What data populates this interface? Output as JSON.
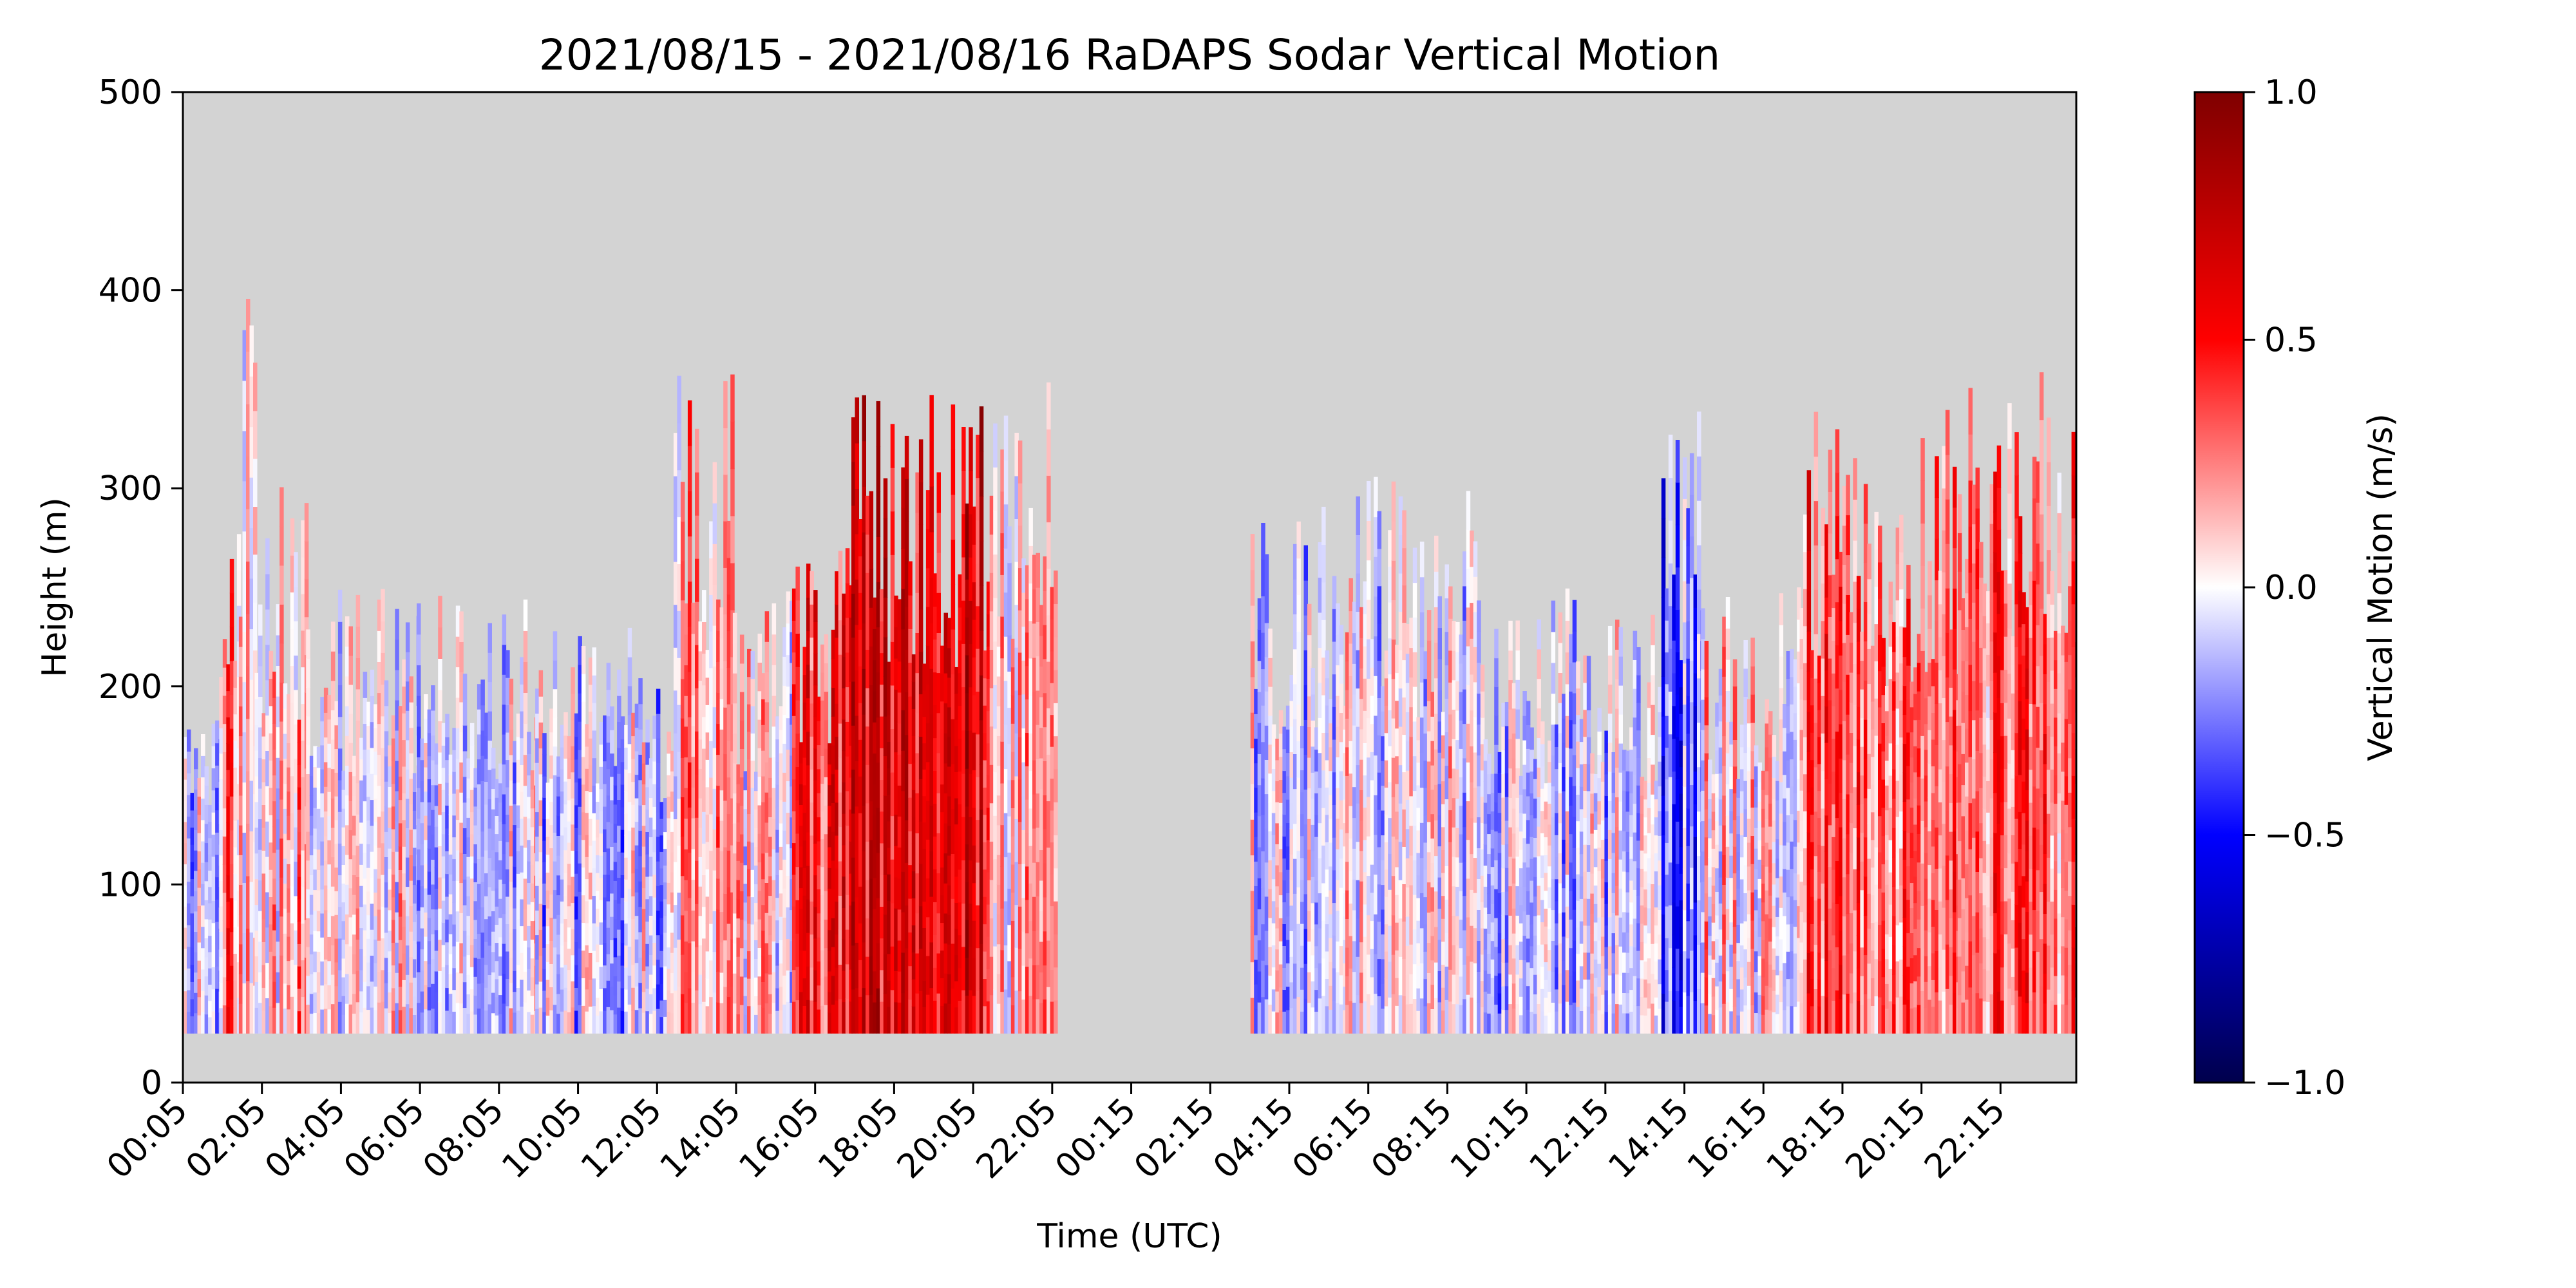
{
  "chart_data": {
    "type": "heatmap",
    "title": "2021/08/15 - 2021/08/16 RaDAPS Sodar Vertical Motion",
    "xlabel": "Time (UTC)",
    "ylabel": "Height (m)",
    "ylim": [
      0,
      500
    ],
    "y_ticks": [
      "0",
      "100",
      "200",
      "300",
      "400",
      "500"
    ],
    "x_tick_labels": [
      "00:05",
      "02:05",
      "04:05",
      "06:05",
      "08:05",
      "10:05",
      "12:05",
      "14:05",
      "16:05",
      "18:05",
      "20:05",
      "22:05",
      "00:15",
      "02:15",
      "04:15",
      "06:15",
      "08:15",
      "10:15",
      "12:15",
      "14:15",
      "16:15",
      "18:15",
      "20:15",
      "22:15"
    ],
    "x_range_hours": [
      0.083,
      48
    ],
    "data_gap_hours": [
      22.2,
      27.1
    ],
    "min_height_m": 25,
    "colormap": "seismic",
    "colorbar": {
      "label": "Vertical Motion (m/s)",
      "range": [
        -1.0,
        1.0
      ],
      "ticks": [
        "1.0",
        "0.5",
        "0.0",
        "−0.5",
        "−1.0"
      ]
    },
    "background_color": "#d3d3d3",
    "segments": [
      {
        "start_hour": 0.0,
        "end_hour": 1.0,
        "top_height": 190,
        "mean_motion": -0.1
      },
      {
        "start_hour": 1.0,
        "end_hour": 1.7,
        "top_height": 300,
        "mean_motion": 0.25
      },
      {
        "start_hour": 1.5,
        "end_hour": 1.9,
        "top_height": 400,
        "mean_motion": 0.1
      },
      {
        "start_hour": 1.9,
        "end_hour": 3.2,
        "top_height": 310,
        "mean_motion": 0.15
      },
      {
        "start_hour": 3.2,
        "end_hour": 6.0,
        "top_height": 250,
        "mean_motion": 0.05
      },
      {
        "start_hour": 6.0,
        "end_hour": 9.0,
        "top_height": 250,
        "mean_motion": -0.05
      },
      {
        "start_hour": 9.0,
        "end_hour": 12.5,
        "top_height": 235,
        "mean_motion": -0.1
      },
      {
        "start_hour": 12.5,
        "end_hour": 14.0,
        "top_height": 370,
        "mean_motion": 0.15
      },
      {
        "start_hour": 14.0,
        "end_hour": 15.5,
        "top_height": 250,
        "mean_motion": 0.05
      },
      {
        "start_hour": 15.5,
        "end_hour": 17.0,
        "top_height": 280,
        "mean_motion": 0.45
      },
      {
        "start_hour": 17.0,
        "end_hour": 20.5,
        "top_height": 355,
        "mean_motion": 0.6
      },
      {
        "start_hour": 20.5,
        "end_hour": 22.2,
        "top_height": 355,
        "mean_motion": 0.1
      },
      {
        "start_hour": 27.1,
        "end_hour": 29.5,
        "top_height": 295,
        "mean_motion": -0.05
      },
      {
        "start_hour": 29.5,
        "end_hour": 33.0,
        "top_height": 310,
        "mean_motion": 0.0
      },
      {
        "start_hour": 33.0,
        "end_hour": 37.5,
        "top_height": 250,
        "mean_motion": -0.1
      },
      {
        "start_hour": 37.5,
        "end_hour": 38.5,
        "top_height": 340,
        "mean_motion": -0.3
      },
      {
        "start_hour": 38.5,
        "end_hour": 41.0,
        "top_height": 250,
        "mean_motion": 0.05
      },
      {
        "start_hour": 41.0,
        "end_hour": 45.0,
        "top_height": 340,
        "mean_motion": 0.35
      },
      {
        "start_hour": 45.0,
        "end_hour": 48.0,
        "top_height": 370,
        "mean_motion": 0.3
      }
    ]
  }
}
